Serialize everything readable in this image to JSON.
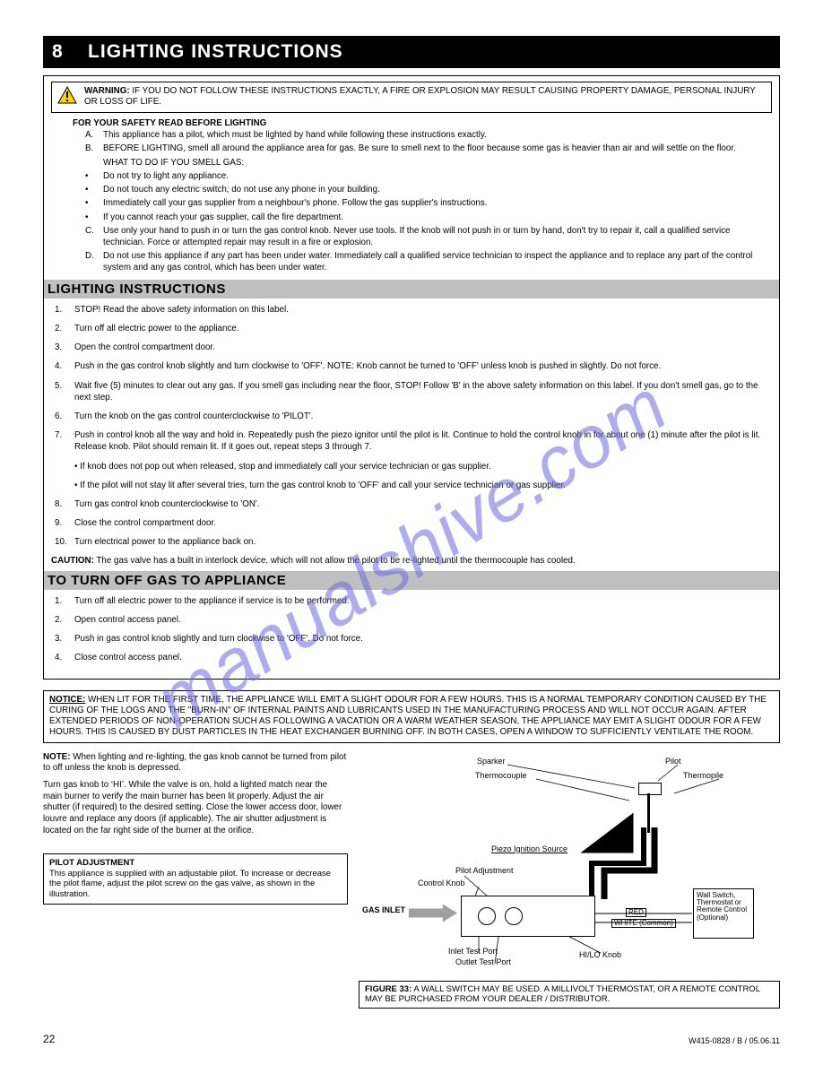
{
  "page": {
    "title_prefix": "8",
    "title": "LIGHTING INSTRUCTIONS",
    "page_number": "22",
    "footer_right": "W415-0828 / B / 05.06.11"
  },
  "watermark": "manualshive.com",
  "warning": {
    "heading": "WARNING:",
    "text": "IF YOU DO NOT FOLLOW THESE INSTRUCTIONS EXACTLY, A FIRE OR EXPLOSION MAY RESULT CAUSING PROPERTY DAMAGE, PERSONAL INJURY OR LOSS OF LIFE."
  },
  "foryoursafety_heading": "FOR YOUR SAFETY READ BEFORE LIGHTING",
  "fys_items": [
    {
      "label": "A.",
      "text": "This appliance has a pilot, which must be lighted by hand while following these instructions exactly."
    },
    {
      "label": "B.",
      "text": "BEFORE LIGHTING, smell all around the appliance area for gas. Be sure to smell next to the floor because some gas is heavier than air and will settle on the floor."
    },
    {
      "label": "",
      "text": "WHAT TO DO IF YOU SMELL GAS:"
    },
    {
      "label": "•",
      "text": "Do not try to light any appliance."
    },
    {
      "label": "•",
      "text": "Do not touch any electric switch; do not use any phone in your building."
    },
    {
      "label": "•",
      "text": "Immediately call your gas supplier from a neighbour's phone. Follow the gas supplier's instructions."
    },
    {
      "label": "•",
      "text": "If you cannot reach your gas supplier, call the fire department."
    },
    {
      "label": "C.",
      "text": "Use only your hand to push in or turn the gas control knob. Never use tools. If the knob will not push in or turn by hand, don't try to repair it, call a qualified service technician. Force or attempted repair may result in a fire or explosion."
    },
    {
      "label": "D.",
      "text": "Do not use this appliance if any part has been under water. Immediately call a qualified service technician to inspect the appliance and to replace any part of the control system and any gas control, which has been under water."
    }
  ],
  "lighting_heading": "LIGHTING INSTRUCTIONS",
  "lighting_steps": [
    {
      "n": "1.",
      "text": "STOP! Read the above safety information on this label."
    },
    {
      "n": "2.",
      "text": "Turn off all electric power to the appliance."
    },
    {
      "n": "3.",
      "text": "Open the control compartment door."
    },
    {
      "n": "4.",
      "text": "Push in the gas control knob slightly and turn clockwise to 'OFF'. NOTE: Knob cannot be turned to 'OFF' unless knob is pushed in slightly. Do not force."
    },
    {
      "n": "5.",
      "text": "Wait five (5) minutes to clear out any gas. If you smell gas including near the floor, STOP! Follow 'B' in the above safety information on this label. If you don't smell gas, go to the next step."
    },
    {
      "n": "6.",
      "text": "Turn the knob on the gas control counterclockwise to 'PILOT'."
    },
    {
      "n": "7.",
      "text": "Push in control knob all the way and hold in. Repeatedly push the piezo ignitor until the pilot is lit. Continue to hold the control knob in for about one (1) minute after the pilot is lit. Release knob. Pilot should remain lit. If it goes out, repeat steps 3 through 7."
    },
    {
      "n": "",
      "text": "• If knob does not pop out when released, stop and immediately call your service technician or gas supplier."
    },
    {
      "n": "",
      "text": "• If the pilot will not stay lit after several tries, turn the gas control knob to 'OFF' and call your service technician or gas supplier."
    },
    {
      "n": "8.",
      "text": "Turn gas control knob counterclockwise to 'ON'."
    },
    {
      "n": "9.",
      "text": "Close the control compartment door."
    },
    {
      "n": "10.",
      "text": "Turn electrical power to the appliance back on."
    }
  ],
  "caution": {
    "heading": "CAUTION:",
    "text": " The gas valve has a built in interlock device, which will not allow the pilot to be re-lighted until the thermocouple has cooled."
  },
  "turnoff_heading": "TO TURN OFF GAS TO APPLIANCE",
  "turnoff_steps": [
    {
      "n": "1.",
      "text": "Turn off all electric power to the appliance if service is to be performed."
    },
    {
      "n": "2.",
      "text": "Open control access panel."
    },
    {
      "n": "3.",
      "text": "Push in gas control knob slightly and turn clockwise to 'OFF'. Do not force."
    },
    {
      "n": "4.",
      "text": "Close control access panel."
    }
  ],
  "notice": {
    "heading": "NOTICE:",
    "text": "WHEN LIT FOR THE FIRST TIME, THE APPLIANCE WILL EMIT A SLIGHT ODOUR FOR A FEW HOURS. THIS IS A NORMAL TEMPORARY CONDITION CAUSED BY THE CURING OF THE LOGS AND THE \"BURN-IN\" OF INTERNAL PAINTS AND LUBRICANTS USED IN THE MANUFACTURING PROCESS AND WILL NOT OCCUR AGAIN. AFTER EXTENDED PERIODS OF NON-OPERATION SUCH AS FOLLOWING A VACATION OR A WARM WEATHER SEASON, THE APPLIANCE MAY EMIT A SLIGHT ODOUR FOR A FEW HOURS. THIS IS CAUSED BY DUST PARTICLES IN THE HEAT EXCHANGER BURNING OFF. IN BOTH CASES, OPEN A WINDOW TO SUFFICIENTLY VENTILATE THE ROOM."
  },
  "lower": {
    "note_label": "NOTE:",
    "note_text": " When lighting and re-lighting, the gas knob cannot be turned from pilot to off unless the knob is depressed.",
    "p1": "Turn gas knob to ‘HI’. While the valve is on, hold a lighted match near the main burner to verify the main burner has been lit properly. Adjust the air shutter (if required) to the desired setting. Close the lower access door, lower louvre and replace any doors (if applicable). The air shutter adjustment is located on the far right side of the burner at the orifice.",
    "pilot_box_heading": "PILOT ADJUSTMENT",
    "pilot_box_text": "This appliance is supplied with an adjustable pilot. To increase or decrease the pilot flame, adjust the pilot screw on the gas valve, as shown in the illustration."
  },
  "diagram": {
    "labels": {
      "sparker": "Sparker",
      "pilot": "Pilot",
      "thermocouple": "Thermocouple",
      "thermopile": "Thermopile",
      "piezo": "Piezo Ignition Source",
      "pilot_adj": "Pilot Adjustment",
      "control_knob": "Control Knob",
      "gas_inlet": "GAS INLET",
      "inlet_test": "Inlet Test Port",
      "outlet_test": "Outlet Test Port",
      "hilo": "HI/LO Knob",
      "red": "RED",
      "white": "WHITE (Common)",
      "wall_switch": "Wall Switch, Thermostat or Remote Control (Optional)"
    },
    "caption_label": "FIGURE 33:",
    "caption_text": " A WALL SWITCH MAY BE USED. A MILLIVOLT THERMOSTAT, OR A REMOTE CONTROL MAY BE PURCHASED FROM YOUR DEALER / DISTRIBUTOR."
  },
  "style": {
    "colors": {
      "title_bg": "#000000",
      "title_text": "#ffffff",
      "body_text": "#000000",
      "gray_bar": "#bfbfbf",
      "arrow_fill": "#a0a0a0",
      "watermark": "rgba(108,104,224,0.55)",
      "warn_yellow": "#ffd400"
    },
    "fonts": {
      "body_pt": 9.8,
      "heading_pt": 15,
      "title_pt": 21,
      "diagram_pt": 9
    }
  }
}
